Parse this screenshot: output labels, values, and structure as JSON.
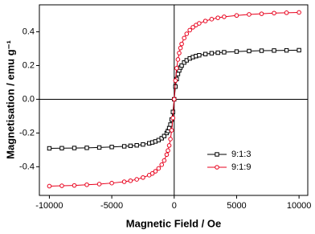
{
  "chart_data": {
    "type": "scatter-line",
    "x_label": "Magnetic Field / Oe",
    "y_label": "Magnetisation / emu g⁻¹",
    "x": [
      -10000,
      -9000,
      -8000,
      -7000,
      -6000,
      -5000,
      -4000,
      -3500,
      -3000,
      -2500,
      -2000,
      -1750,
      -1500,
      -1250,
      -1000,
      -800,
      -600,
      -500,
      -400,
      -300,
      -200,
      -100,
      0,
      100,
      200,
      300,
      400,
      500,
      600,
      800,
      1000,
      1250,
      1500,
      1750,
      2000,
      2500,
      3000,
      3500,
      4000,
      5000,
      6000,
      7000,
      8000,
      9000,
      10000
    ],
    "series": [
      {
        "name": "9:1:3",
        "color": "#000000",
        "marker": "square",
        "values": [
          -0.291,
          -0.29,
          -0.289,
          -0.288,
          -0.286,
          -0.283,
          -0.279,
          -0.276,
          -0.273,
          -0.268,
          -0.261,
          -0.256,
          -0.25,
          -0.242,
          -0.231,
          -0.218,
          -0.2,
          -0.188,
          -0.171,
          -0.15,
          -0.12,
          -0.075,
          0,
          0.075,
          0.12,
          0.15,
          0.171,
          0.188,
          0.2,
          0.218,
          0.231,
          0.242,
          0.25,
          0.256,
          0.261,
          0.268,
          0.273,
          0.276,
          0.279,
          0.283,
          0.286,
          0.288,
          0.289,
          0.29,
          0.291
        ]
      },
      {
        "name": "9:1:9",
        "color": "#e8001c",
        "marker": "circle",
        "values": [
          -0.515,
          -0.513,
          -0.511,
          -0.507,
          -0.503,
          -0.497,
          -0.489,
          -0.483,
          -0.475,
          -0.464,
          -0.45,
          -0.44,
          -0.427,
          -0.41,
          -0.388,
          -0.363,
          -0.328,
          -0.304,
          -0.274,
          -0.236,
          -0.184,
          -0.111,
          0,
          0.111,
          0.184,
          0.236,
          0.274,
          0.304,
          0.328,
          0.363,
          0.388,
          0.41,
          0.427,
          0.44,
          0.45,
          0.464,
          0.475,
          0.483,
          0.489,
          0.497,
          0.503,
          0.507,
          0.511,
          0.513,
          0.515
        ]
      }
    ],
    "xlim": [
      -10800,
      10700
    ],
    "xticks": [
      -10000,
      -5000,
      0,
      5000,
      10000
    ],
    "ylim": [
      -0.57,
      0.56
    ],
    "yticks": [
      -0.4,
      -0.2,
      {
        "value": 0,
        "label": "0.0"
      },
      0.2,
      0.4
    ],
    "zero_lines": true,
    "legend_position": "lower right"
  }
}
